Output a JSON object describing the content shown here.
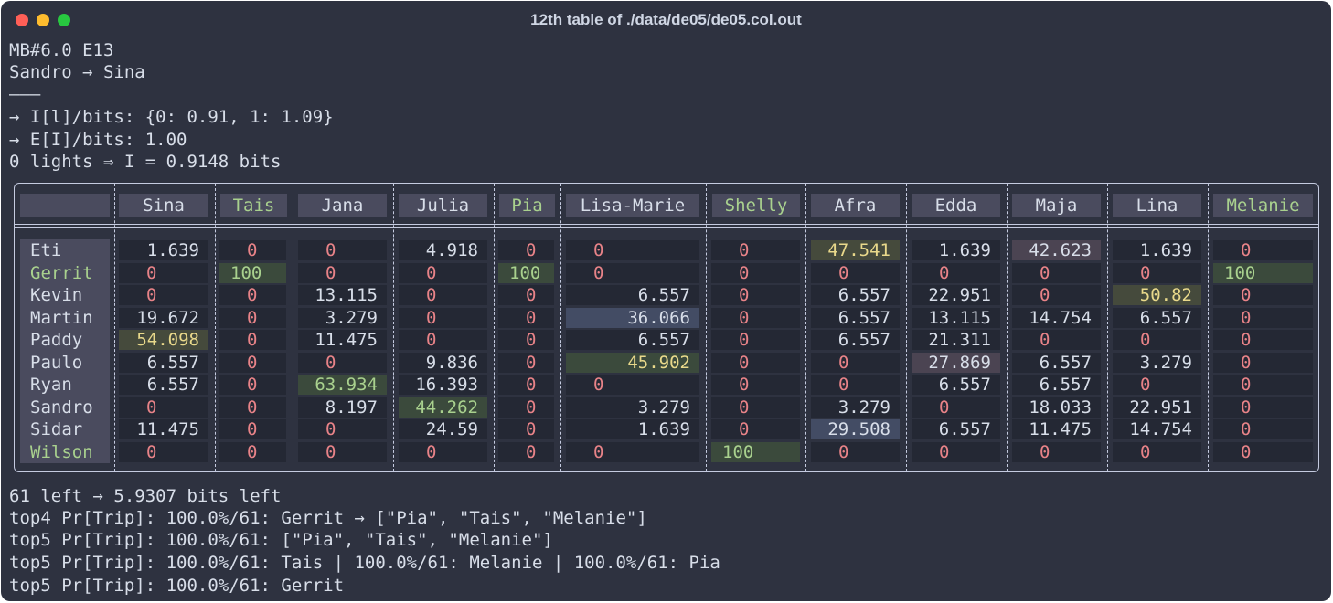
{
  "window": {
    "title": "12th table of ./data/de05/de05.col.out"
  },
  "header_lines": [
    "MB#6.0 E13",
    "Sandro → Sina",
    "———",
    "→ I[l]/bits: {0: 0.91, 1: 1.09}",
    "→ E[I]/bits: 1.00",
    "0 lights ⇒ I = 0.9148 bits"
  ],
  "table": {
    "columns": [
      "Sina",
      "Tais",
      "Jana",
      "Julia",
      "Pia",
      "Lisa-Marie",
      "Shelly",
      "Afra",
      "Edda",
      "Maja",
      "Lina",
      "Melanie"
    ],
    "rows": [
      {
        "name": "Eti",
        "cells": [
          "1.639",
          "0",
          "0",
          "4.918",
          "0",
          "0",
          "0",
          "47.541",
          "1.639",
          "42.623",
          "1.639",
          "0"
        ]
      },
      {
        "name": "Gerrit",
        "cells": [
          "0",
          "100",
          "0",
          "0",
          "100",
          "0",
          "0",
          "0",
          "0",
          "0",
          "0",
          "100"
        ]
      },
      {
        "name": "Kevin",
        "cells": [
          "0",
          "0",
          "13.115",
          "0",
          "0",
          "6.557",
          "0",
          "6.557",
          "22.951",
          "0",
          "50.82",
          "0"
        ]
      },
      {
        "name": "Martin",
        "cells": [
          "19.672",
          "0",
          "3.279",
          "0",
          "0",
          "36.066",
          "0",
          "6.557",
          "13.115",
          "14.754",
          "6.557",
          "0"
        ]
      },
      {
        "name": "Paddy",
        "cells": [
          "54.098",
          "0",
          "11.475",
          "0",
          "0",
          "6.557",
          "0",
          "6.557",
          "21.311",
          "0",
          "0",
          "0"
        ]
      },
      {
        "name": "Paulo",
        "cells": [
          "6.557",
          "0",
          "0",
          "9.836",
          "0",
          "45.902",
          "0",
          "0",
          "27.869",
          "6.557",
          "3.279",
          "0"
        ]
      },
      {
        "name": "Ryan",
        "cells": [
          "6.557",
          "0",
          "63.934",
          "16.393",
          "0",
          "0",
          "0",
          "0",
          "6.557",
          "6.557",
          "0",
          "0"
        ]
      },
      {
        "name": "Sandro",
        "cells": [
          "0",
          "0",
          "8.197",
          "44.262",
          "0",
          "3.279",
          "0",
          "3.279",
          "0",
          "18.033",
          "22.951",
          "0"
        ]
      },
      {
        "name": "Sidar",
        "cells": [
          "11.475",
          "0",
          "0",
          "24.59",
          "0",
          "1.639",
          "0",
          "29.508",
          "6.557",
          "11.475",
          "14.754",
          "0"
        ]
      },
      {
        "name": "Wilson",
        "cells": [
          "0",
          "0",
          "0",
          "0",
          "0",
          "0",
          "100",
          "0",
          "0",
          "0",
          "0",
          "0"
        ]
      }
    ]
  },
  "footer_lines": [
    "61 left → 5.9307 bits left",
    "top4 Pr[Trip]: 100.0%/61: Gerrit → [\"Pia\", \"Tais\", \"Melanie\"]",
    "top5 Pr[Trip]: 100.0%/61: [\"Pia\", \"Tais\", \"Melanie\"]",
    "top5 Pr[Trip]: 100.0%/61: Tais | 100.0%/61: Melanie | 100.0%/61: Pia",
    "top5 Pr[Trip]: 100.0%/61: Gerrit"
  ],
  "colors": {
    "zero": "#e88388",
    "number": "#d8dee9",
    "highlight_green_text": "#a9d18e",
    "highlight_yellow_text": "#e9d98b",
    "bg_green": "#3b4a3c",
    "bg_blue": "#434c64",
    "bg_mauve": "#4b4452",
    "bg_olive": "#454a3c"
  }
}
